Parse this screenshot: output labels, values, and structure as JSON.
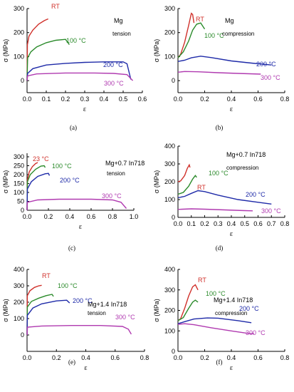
{
  "chart_data": [
    {
      "type": "line",
      "panel_label": "(a)",
      "xlabel": "ε",
      "ylabel": "σ (MPa)",
      "xlim": [
        0,
        0.6
      ],
      "ylim": [
        -50,
        300
      ],
      "xticks": [
        "0.0",
        "0.1",
        "0.2",
        "0.3",
        "0.4",
        "0.5",
        "0.6"
      ],
      "yticks": [
        "0",
        "100",
        "200",
        "300"
      ],
      "annotations": [
        "Mg",
        "tension"
      ],
      "grid": false,
      "series": [
        {
          "name": "RT",
          "color": "#d0302a",
          "points": [
            [
              0,
              0
            ],
            [
              0.002,
              150
            ],
            [
              0.01,
              185
            ],
            [
              0.03,
              210
            ],
            [
              0.06,
              235
            ],
            [
              0.09,
              250
            ],
            [
              0.11,
              257
            ]
          ]
        },
        {
          "name": "100 °C",
          "color": "#2a8a2a",
          "points": [
            [
              0,
              0
            ],
            [
              0.003,
              95
            ],
            [
              0.02,
              120
            ],
            [
              0.05,
              140
            ],
            [
              0.1,
              158
            ],
            [
              0.15,
              168
            ],
            [
              0.2,
              172
            ],
            [
              0.22,
              150
            ]
          ]
        },
        {
          "name": "200 °C",
          "color": "#1e2aa8",
          "points": [
            [
              0,
              0
            ],
            [
              0.003,
              30
            ],
            [
              0.03,
              50
            ],
            [
              0.1,
              65
            ],
            [
              0.2,
              72
            ],
            [
              0.3,
              76
            ],
            [
              0.4,
              78
            ],
            [
              0.5,
              78
            ],
            [
              0.52,
              70
            ],
            [
              0.54,
              5
            ]
          ]
        },
        {
          "name": "300 °C",
          "color": "#b03ab0",
          "points": [
            [
              0,
              0
            ],
            [
              0.003,
              20
            ],
            [
              0.05,
              28
            ],
            [
              0.2,
              32
            ],
            [
              0.35,
              32
            ],
            [
              0.45,
              30
            ],
            [
              0.52,
              25
            ],
            [
              0.55,
              0
            ]
          ]
        }
      ]
    },
    {
      "type": "line",
      "panel_label": "(b)",
      "xlabel": "ε",
      "ylabel": "σ (MPa)",
      "xlim": [
        0,
        0.8
      ],
      "ylim": [
        -50,
        300
      ],
      "xticks": [
        "0.0",
        "0.2",
        "0.4",
        "0.6",
        "0.8"
      ],
      "yticks": [
        "0",
        "100",
        "200",
        "300"
      ],
      "annotations": [
        "Mg",
        "compression"
      ],
      "grid": false,
      "series": [
        {
          "name": "RT",
          "color": "#d0302a",
          "points": [
            [
              0,
              95
            ],
            [
              0.02,
              110
            ],
            [
              0.05,
              160
            ],
            [
              0.08,
              230
            ],
            [
              0.1,
              280
            ],
            [
              0.11,
              275
            ],
            [
              0.12,
              240
            ]
          ]
        },
        {
          "name": "100 °C",
          "color": "#2a8a2a",
          "points": [
            [
              0,
              95
            ],
            [
              0.04,
              120
            ],
            [
              0.08,
              165
            ],
            [
              0.11,
              210
            ],
            [
              0.14,
              235
            ],
            [
              0.17,
              240
            ],
            [
              0.2,
              215
            ]
          ]
        },
        {
          "name": "200 °C",
          "color": "#1e2aa8",
          "points": [
            [
              0,
              80
            ],
            [
              0.05,
              85
            ],
            [
              0.1,
              95
            ],
            [
              0.17,
              102
            ],
            [
              0.25,
              96
            ],
            [
              0.4,
              82
            ],
            [
              0.55,
              73
            ],
            [
              0.7,
              65
            ]
          ]
        },
        {
          "name": "300 °C",
          "color": "#b03ab0",
          "points": [
            [
              0,
              35
            ],
            [
              0.05,
              38
            ],
            [
              0.15,
              37
            ],
            [
              0.3,
              33
            ],
            [
              0.45,
              30
            ],
            [
              0.62,
              27
            ]
          ]
        }
      ]
    },
    {
      "type": "line",
      "panel_label": "(c)",
      "xlabel": "ε",
      "ylabel": "σ (MPa)",
      "xlim": [
        0,
        1.0
      ],
      "ylim": [
        0,
        320
      ],
      "xticks": [
        "0.0",
        "0.2",
        "0.4",
        "0.6",
        "0.8",
        "1.0"
      ],
      "yticks": [
        "0",
        "50",
        "100",
        "150",
        "200",
        "250",
        "300"
      ],
      "annotations": [
        "Mg+0.7 In718",
        "tension"
      ],
      "grid": false,
      "series": [
        {
          "name": "23 °C",
          "color": "#d0302a",
          "points": [
            [
              0,
              0
            ],
            [
              0.003,
              170
            ],
            [
              0.02,
              215
            ],
            [
              0.05,
              245
            ],
            [
              0.08,
              262
            ],
            [
              0.1,
              268
            ]
          ]
        },
        {
          "name": "100 °C",
          "color": "#2a8a2a",
          "points": [
            [
              0,
              0
            ],
            [
              0.003,
              160
            ],
            [
              0.03,
              200
            ],
            [
              0.08,
              230
            ],
            [
              0.13,
              248
            ],
            [
              0.16,
              250
            ],
            [
              0.17,
              240
            ]
          ]
        },
        {
          "name": "200 °C",
          "color": "#1e2aa8",
          "points": [
            [
              0,
              0
            ],
            [
              0.003,
              120
            ],
            [
              0.04,
              160
            ],
            [
              0.1,
              190
            ],
            [
              0.17,
              205
            ],
            [
              0.2,
              207
            ],
            [
              0.21,
              195
            ]
          ]
        },
        {
          "name": "300 °C",
          "color": "#b03ab0",
          "points": [
            [
              0,
              0
            ],
            [
              0.003,
              45
            ],
            [
              0.1,
              58
            ],
            [
              0.3,
              62
            ],
            [
              0.6,
              62
            ],
            [
              0.8,
              58
            ],
            [
              0.88,
              45
            ],
            [
              0.93,
              10
            ]
          ]
        }
      ]
    },
    {
      "type": "line",
      "panel_label": "(d)",
      "xlabel": "ε",
      "ylabel": "σ (MPa)",
      "xlim": [
        0,
        0.8
      ],
      "ylim": [
        0,
        400
      ],
      "xticks": [
        "0.0",
        "0.1",
        "0.2",
        "0.3",
        "0.4",
        "0.5",
        "0.6",
        "0.7",
        "0.8"
      ],
      "yticks": [
        "0",
        "100",
        "200",
        "300",
        "400"
      ],
      "annotations": [
        "Mg+0.7 In718",
        "compression"
      ],
      "grid": false,
      "series": [
        {
          "name": "RT",
          "color": "#d0302a",
          "points": [
            [
              0,
              200
            ],
            [
              0.02,
              205
            ],
            [
              0.05,
              235
            ],
            [
              0.07,
              275
            ],
            [
              0.085,
              295
            ],
            [
              0.09,
              280
            ]
          ]
        },
        {
          "name": "100 °C",
          "color": "#2a8a2a",
          "points": [
            [
              0,
              130
            ],
            [
              0.04,
              140
            ],
            [
              0.08,
              175
            ],
            [
              0.11,
              215
            ],
            [
              0.13,
              235
            ],
            [
              0.14,
              225
            ]
          ]
        },
        {
          "name": "200 °C",
          "color": "#1e2aa8",
          "points": [
            [
              0,
              110
            ],
            [
              0.05,
              118
            ],
            [
              0.1,
              135
            ],
            [
              0.15,
              150
            ],
            [
              0.2,
              145
            ],
            [
              0.3,
              125
            ],
            [
              0.45,
              100
            ],
            [
              0.6,
              85
            ],
            [
              0.7,
              75
            ]
          ]
        },
        {
          "name": "300 °C",
          "color": "#b03ab0",
          "points": [
            [
              0,
              45
            ],
            [
              0.1,
              48
            ],
            [
              0.2,
              46
            ],
            [
              0.35,
              42
            ],
            [
              0.5,
              38
            ],
            [
              0.56,
              37
            ]
          ]
        }
      ]
    },
    {
      "type": "line",
      "panel_label": "(e)",
      "xlabel": "ε",
      "ylabel": "σ (MPa)",
      "xlim": [
        0,
        0.8
      ],
      "ylim": [
        -100,
        400
      ],
      "xticks": [
        "0.0",
        "0.2",
        "0.4",
        "0.6",
        "0.8"
      ],
      "yticks": [
        "0",
        "100",
        "200",
        "300",
        "400"
      ],
      "annotations": [
        "Mg+1.4 In718",
        "tension"
      ],
      "grid": false,
      "series": [
        {
          "name": "RT",
          "color": "#d0302a",
          "points": [
            [
              0,
              0
            ],
            [
              0.002,
              240
            ],
            [
              0.02,
              270
            ],
            [
              0.05,
              290
            ],
            [
              0.08,
              300
            ],
            [
              0.1,
              303
            ]
          ]
        },
        {
          "name": "100 °C",
          "color": "#2a8a2a",
          "points": [
            [
              0,
              0
            ],
            [
              0.002,
              170
            ],
            [
              0.03,
              205
            ],
            [
              0.08,
              225
            ],
            [
              0.13,
              240
            ],
            [
              0.17,
              248
            ],
            [
              0.18,
              235
            ]
          ]
        },
        {
          "name": "200 °C",
          "color": "#1e2aa8",
          "points": [
            [
              0,
              0
            ],
            [
              0.002,
              120
            ],
            [
              0.04,
              165
            ],
            [
              0.1,
              190
            ],
            [
              0.2,
              208
            ],
            [
              0.27,
              212
            ],
            [
              0.29,
              195
            ]
          ]
        },
        {
          "name": "300 °C",
          "color": "#b03ab0",
          "points": [
            [
              0,
              0
            ],
            [
              0.003,
              48
            ],
            [
              0.1,
              55
            ],
            [
              0.3,
              58
            ],
            [
              0.5,
              58
            ],
            [
              0.65,
              52
            ],
            [
              0.69,
              35
            ],
            [
              0.71,
              5
            ]
          ]
        }
      ]
    },
    {
      "type": "line",
      "panel_label": "(f)",
      "xlabel": "ε",
      "ylabel": "σ (MPa)",
      "xlim": [
        0,
        0.8
      ],
      "ylim": [
        0,
        400
      ],
      "xticks": [
        "0.0",
        "0.2",
        "0.4",
        "0.6",
        "0.8"
      ],
      "yticks": [
        "0",
        "100",
        "200",
        "300",
        "400"
      ],
      "annotations": [
        "Mg+1.4 In718",
        "compression"
      ],
      "grid": false,
      "series": [
        {
          "name": "RT",
          "color": "#d0302a",
          "points": [
            [
              0,
              150
            ],
            [
              0.02,
              160
            ],
            [
              0.05,
              210
            ],
            [
              0.08,
              270
            ],
            [
              0.11,
              315
            ],
            [
              0.13,
              325
            ],
            [
              0.15,
              300
            ]
          ]
        },
        {
          "name": "100 °C",
          "color": "#2a8a2a",
          "points": [
            [
              0,
              150
            ],
            [
              0.04,
              165
            ],
            [
              0.08,
              210
            ],
            [
              0.11,
              240
            ],
            [
              0.13,
              250
            ],
            [
              0.15,
              240
            ]
          ]
        },
        {
          "name": "200 °C",
          "color": "#1e2aa8",
          "points": [
            [
              0,
              135
            ],
            [
              0.05,
              145
            ],
            [
              0.12,
              158
            ],
            [
              0.22,
              163
            ],
            [
              0.3,
              162
            ],
            [
              0.45,
              150
            ],
            [
              0.55,
              140
            ]
          ]
        },
        {
          "name": "300 °C",
          "color": "#b03ab0",
          "points": [
            [
              0,
              132
            ],
            [
              0.05,
              135
            ],
            [
              0.12,
              130
            ],
            [
              0.25,
              115
            ],
            [
              0.4,
              100
            ],
            [
              0.5,
              90
            ],
            [
              0.57,
              85
            ]
          ]
        }
      ]
    }
  ]
}
